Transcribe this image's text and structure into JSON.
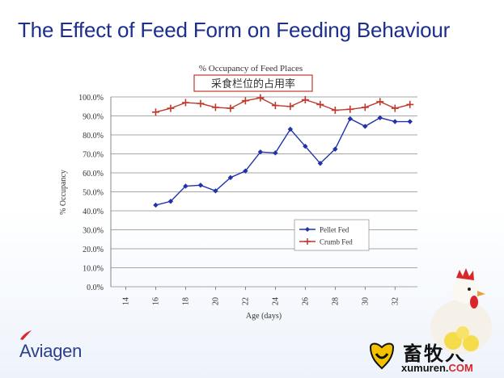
{
  "slide": {
    "title": "The Effect of Feed Form on Feeding Behaviour"
  },
  "chart_data": {
    "type": "line",
    "title": "% Occupancy of Feed Places",
    "subtitle": "采食栏位的占用率",
    "xlabel": "Age (days)",
    "ylabel": "% Occupancy",
    "xlim": [
      13,
      33.5
    ],
    "ylim": [
      0,
      100
    ],
    "xticks": [
      14,
      16,
      18,
      20,
      22,
      24,
      26,
      28,
      30,
      32
    ],
    "yticks": [
      "0.0%",
      "10.0%",
      "20.0%",
      "30.0%",
      "40.0%",
      "50.0%",
      "60.0%",
      "70.0%",
      "80.0%",
      "90.0%",
      "100.0%"
    ],
    "grid": "horizontal",
    "legend_position": "lower-right",
    "x": [
      16,
      17,
      18,
      19,
      20,
      21,
      22,
      23,
      24,
      25,
      26,
      27,
      28,
      29,
      30,
      31,
      32,
      33
    ],
    "series": [
      {
        "name": "Pellet Fed",
        "marker": "diamond",
        "color": "#2233aa",
        "values": [
          43.0,
          45.0,
          53.0,
          53.5,
          50.5,
          57.5,
          61.0,
          71.0,
          70.5,
          83.0,
          74.0,
          65.0,
          72.5,
          88.5,
          84.5,
          89.0,
          87.0,
          87.0
        ]
      },
      {
        "name": "Crumb Fed",
        "marker": "plus",
        "color": "#c0392b",
        "values": [
          92.0,
          94.0,
          97.0,
          96.5,
          94.5,
          94.0,
          98.0,
          99.5,
          95.5,
          95.0,
          98.5,
          96.0,
          93.0,
          93.5,
          94.5,
          97.5,
          94.0,
          96.0
        ]
      }
    ]
  },
  "branding": {
    "logo_text": "Aviagen",
    "site_name": "畜牧人",
    "site_url_main": "xumuren.",
    "site_url_tld": "COM",
    "logo_color": "#2c3e8c",
    "title_color": "#1c2f8c"
  }
}
